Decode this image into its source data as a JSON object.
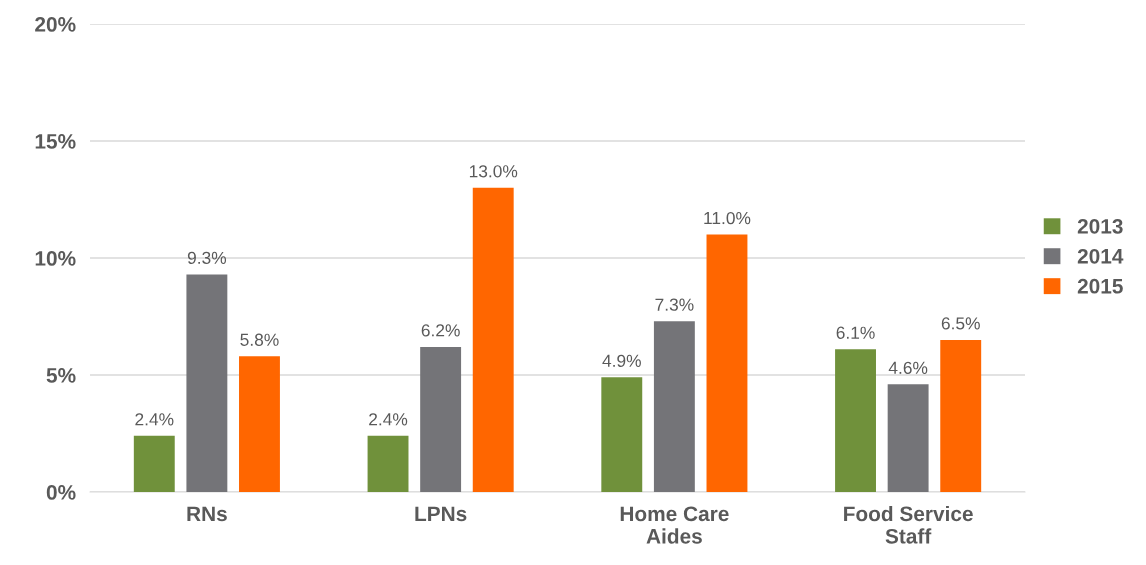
{
  "chart_data": {
    "type": "bar",
    "categories": [
      "RNs",
      "LPNs",
      "Home Care\nAides",
      "Food Service\nStaff"
    ],
    "series": [
      {
        "name": "2013",
        "color": "#70913b",
        "values": [
          2.4,
          2.4,
          4.9,
          6.1
        ],
        "value_labels": [
          "2.4%",
          "2.4%",
          "4.9%",
          "6.1%"
        ]
      },
      {
        "name": "2014",
        "color": "#747478",
        "values": [
          9.3,
          6.2,
          7.3,
          4.6
        ],
        "value_labels": [
          "9.3%",
          "6.2%",
          "7.3%",
          "4.6%"
        ]
      },
      {
        "name": "2015",
        "color": "#ff6600",
        "values": [
          5.8,
          13.0,
          11.0,
          6.5
        ],
        "value_labels": [
          "5.8%",
          "13.0%",
          "11.0%",
          "6.5%"
        ]
      }
    ],
    "ylim": [
      0,
      20
    ],
    "yticks": [
      {
        "value": 0,
        "label": "0%"
      },
      {
        "value": 5,
        "label": "5%"
      },
      {
        "value": 10,
        "label": "10%"
      },
      {
        "value": 15,
        "label": "15%"
      },
      {
        "value": 20,
        "label": "20%"
      }
    ],
    "grid": "y",
    "legend": "right"
  }
}
